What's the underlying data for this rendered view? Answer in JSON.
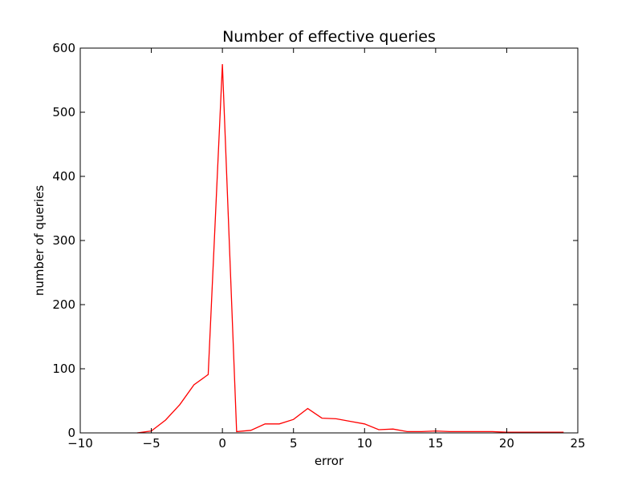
{
  "colors": {
    "series": "#ff0000",
    "axes": "#000000",
    "background": "#ffffff"
  },
  "chart_data": {
    "type": "line",
    "title": "Number of effective queries",
    "xlabel": "error",
    "ylabel": "number of queries",
    "xlim": [
      -10,
      25
    ],
    "ylim": [
      0,
      600
    ],
    "xticks": [
      -10,
      -5,
      0,
      5,
      10,
      15,
      20,
      25
    ],
    "xtick_labels": [
      "−10",
      "−5",
      "0",
      "5",
      "10",
      "15",
      "20",
      "25"
    ],
    "yticks": [
      0,
      100,
      200,
      300,
      400,
      500,
      600
    ],
    "ytick_labels": [
      "0",
      "100",
      "200",
      "300",
      "400",
      "500",
      "600"
    ],
    "grid": false,
    "legend": null,
    "series": [
      {
        "color": "#ff0000",
        "x": [
          -6,
          -5,
          -4,
          -3,
          -2,
          -1,
          0,
          1,
          2,
          3,
          4,
          5,
          6,
          7,
          8,
          9,
          10,
          11,
          12,
          13,
          14,
          15,
          16,
          17,
          18,
          19,
          20,
          21,
          22,
          23,
          24
        ],
        "y": [
          0,
          3,
          20,
          44,
          75,
          91,
          575,
          2,
          4,
          14,
          14,
          21,
          38,
          23,
          22,
          18,
          14,
          5,
          6,
          2,
          2,
          3,
          2,
          2,
          2,
          2,
          1,
          1,
          1,
          1,
          1
        ]
      }
    ]
  }
}
